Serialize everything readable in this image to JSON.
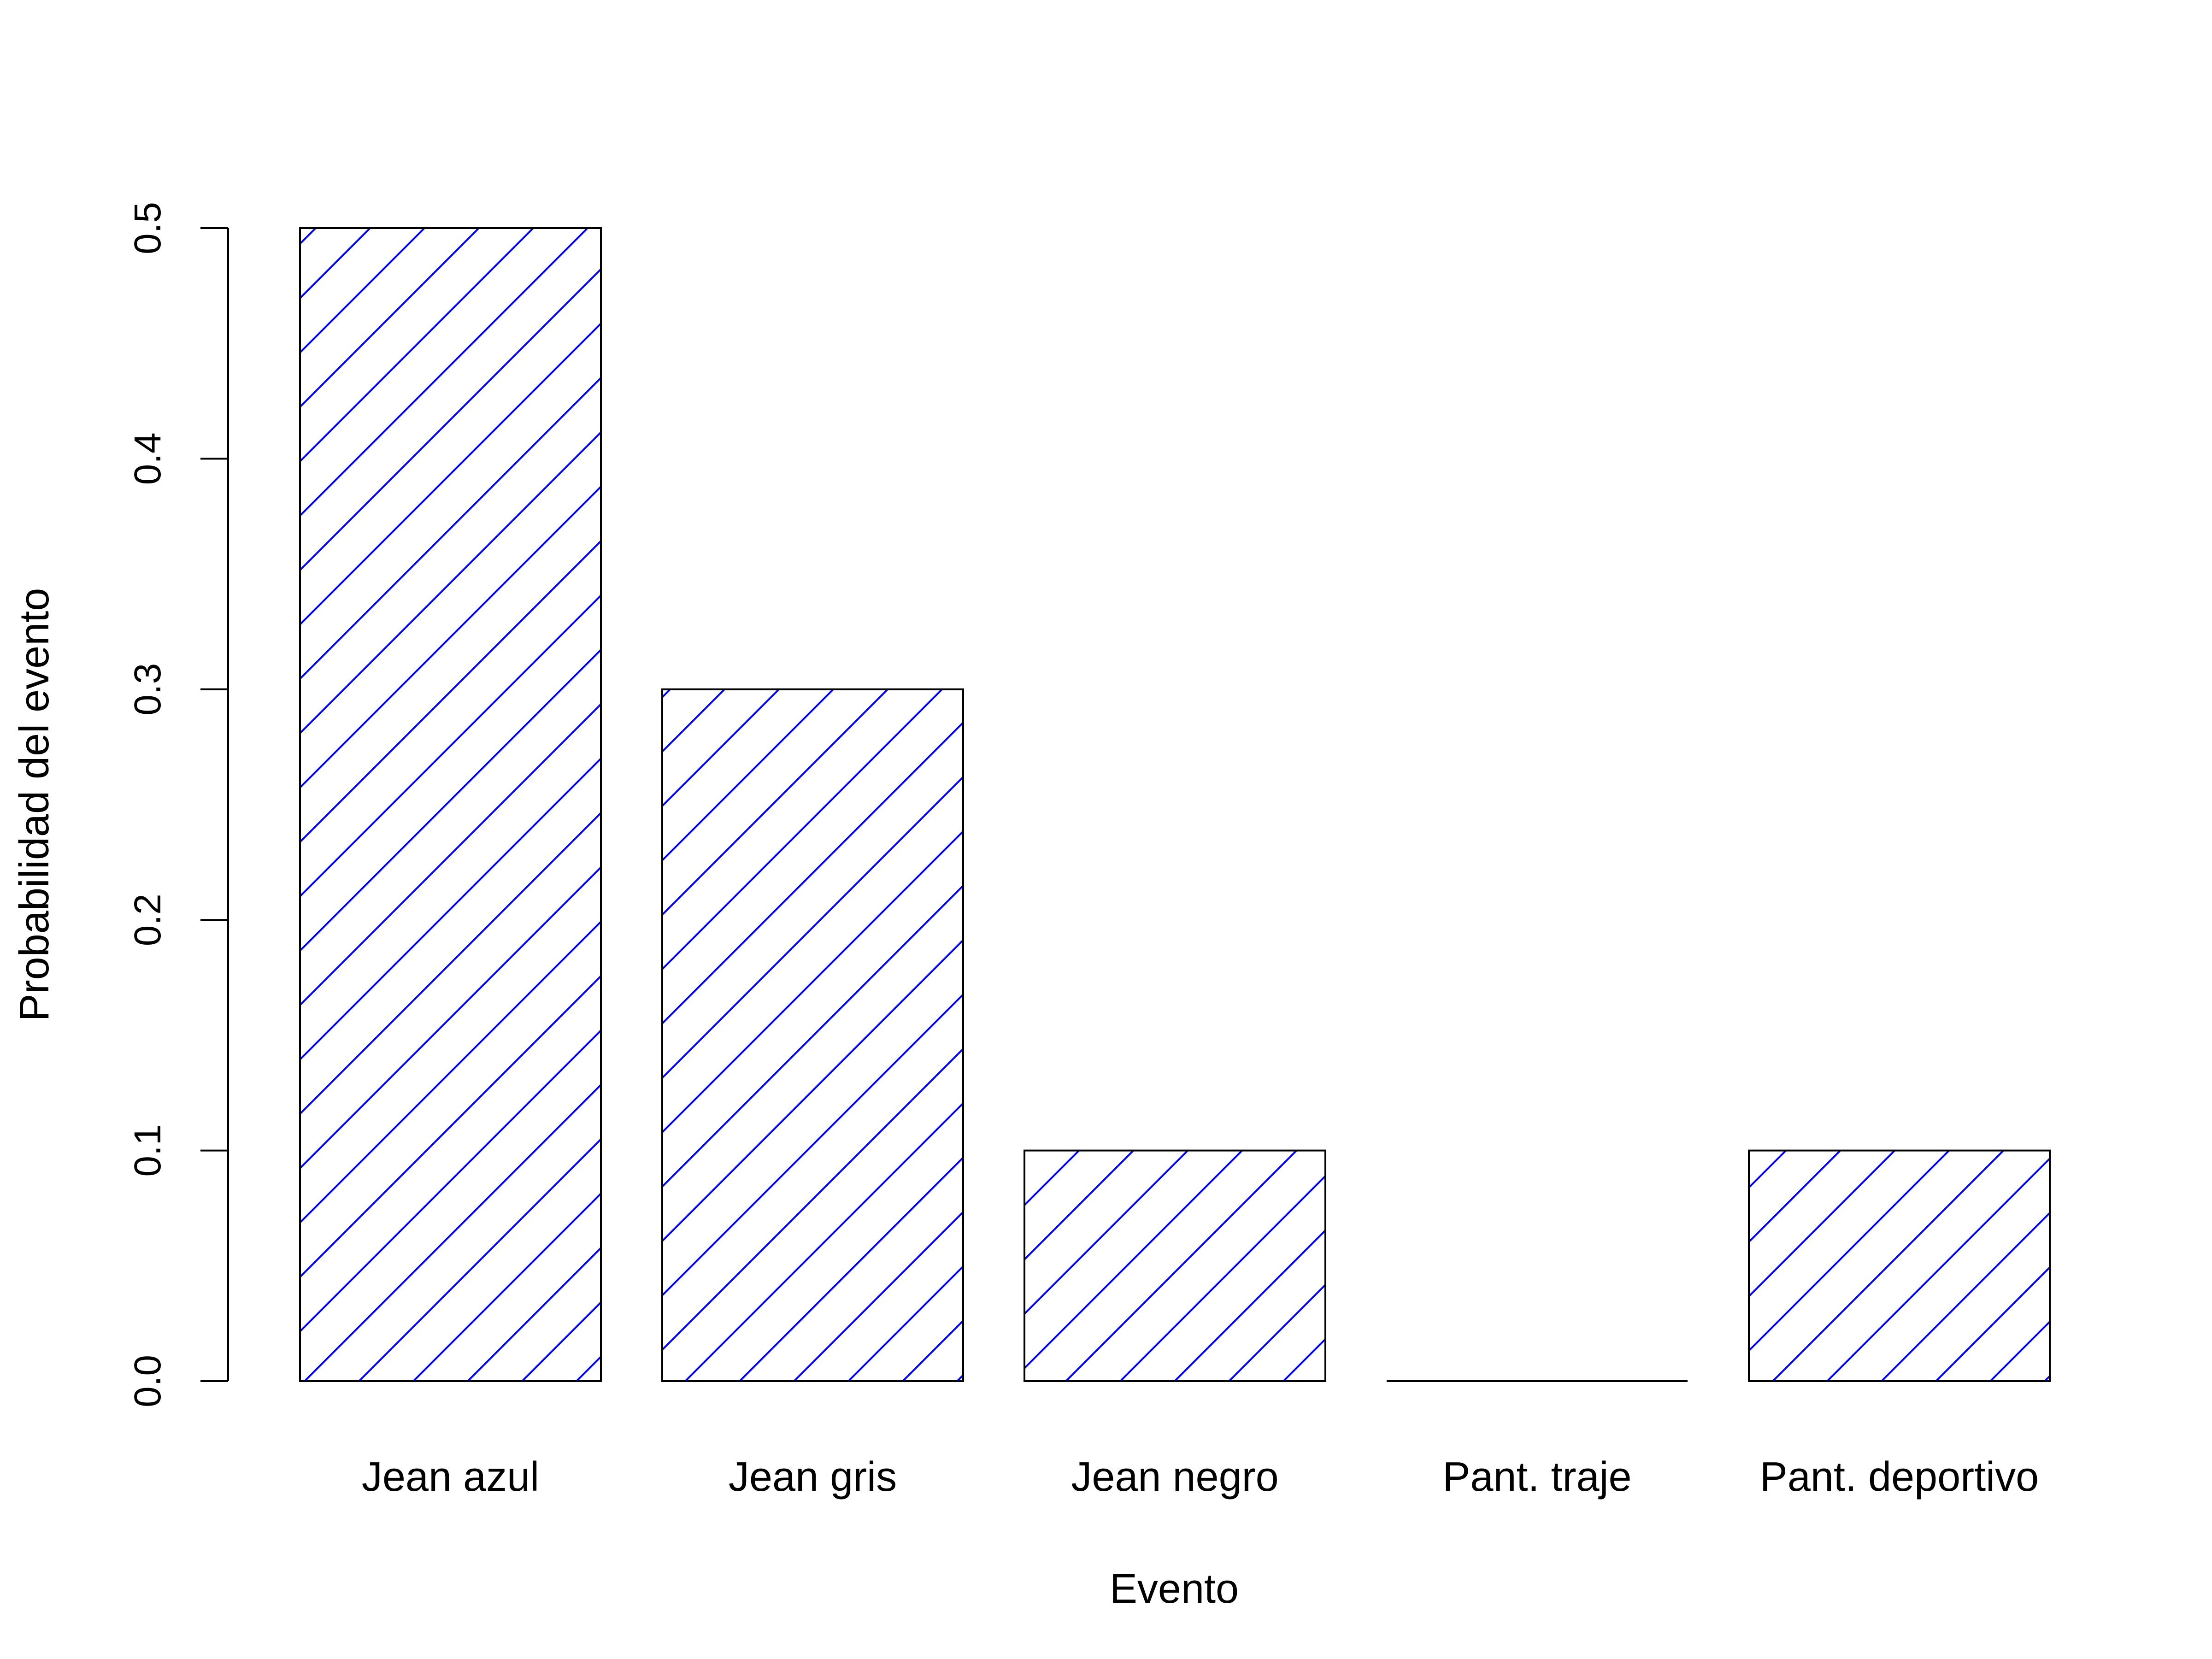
{
  "chart_data": {
    "type": "bar",
    "title": "",
    "xlabel": "Evento",
    "ylabel": "Probabilidad del evento",
    "categories": [
      "Jean azul",
      "Jean gris",
      "Jean negro",
      "Pant. traje",
      "Pant. deportivo"
    ],
    "values": [
      0.5,
      0.3,
      0.1,
      0.0,
      0.1
    ],
    "ylim": [
      0,
      0.5
    ],
    "yticks": [
      "0.0",
      "0.1",
      "0.2",
      "0.3",
      "0.4",
      "0.5"
    ],
    "grid": false,
    "legend": "none",
    "bar_fill": "hatched",
    "hatch_color": "#0000ff",
    "border_color": "#000000"
  }
}
